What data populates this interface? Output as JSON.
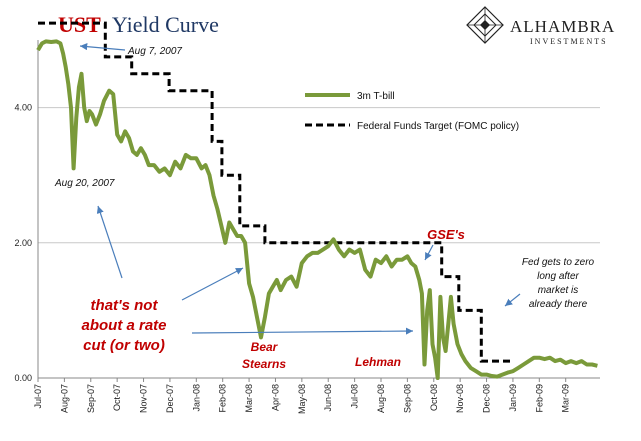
{
  "title": {
    "part1": "UST",
    "part2": "Yield Curve"
  },
  "brand": {
    "name": "ALHAMBRA",
    "subtitle": "INVESTMENTS"
  },
  "colors": {
    "title_red": "#c00000",
    "title_blue": "#1f3864",
    "tbill": "#7a9a3a",
    "fed_funds": "#000000",
    "arrow": "#4a7ebb",
    "annotation_red": "#c00000",
    "grid": "#c8c8c8"
  },
  "legend": [
    {
      "label": "3m T-bill",
      "style": "solid"
    },
    {
      "label": "Federal Funds Target (FOMC policy)",
      "style": "dashed"
    }
  ],
  "annotations": {
    "aug7": "Aug 7, 2007",
    "aug20": "Aug 20, 2007",
    "rate_cut_line1": "that's not",
    "rate_cut_line2": "about a rate",
    "rate_cut_line3": "cut (or two)",
    "bear_line1": "Bear",
    "bear_line2": "Stearns",
    "lehman": "Lehman",
    "gse": "GSE's",
    "zero_line1": "Fed gets to zero",
    "zero_line2": "long after",
    "zero_line3": "market is",
    "zero_line4": "already there"
  },
  "chart_data": {
    "type": "line",
    "x_unit": "months from Jul-07",
    "x_ticks": [
      "Jul-07",
      "Aug-07",
      "Sep-07",
      "Oct-07",
      "Nov-07",
      "Dec-07",
      "Jan-08",
      "Feb-08",
      "Mar-08",
      "Apr-08",
      "May-08",
      "Jun-08",
      "Jul-08",
      "Aug-08",
      "Sep-08",
      "Oct-08",
      "Nov-08",
      "Dec-08",
      "Jan-09",
      "Feb-09",
      "Mar-09"
    ],
    "xlim": [
      0,
      21.3
    ],
    "ylim": [
      0,
      5.0
    ],
    "y_ticks": [
      "0.00",
      "2.00",
      "4.00"
    ],
    "y_tick_values": [
      0,
      2,
      4
    ],
    "grid": true,
    "series": [
      {
        "name": "3m T-bill",
        "x": [
          0.0,
          0.15,
          0.3,
          0.5,
          0.7,
          0.85,
          0.95,
          1.05,
          1.15,
          1.25,
          1.35,
          1.45,
          1.55,
          1.65,
          1.75,
          1.85,
          1.95,
          2.05,
          2.2,
          2.35,
          2.5,
          2.7,
          2.85,
          3.0,
          3.15,
          3.3,
          3.45,
          3.6,
          3.75,
          3.9,
          4.05,
          4.2,
          4.4,
          4.6,
          4.8,
          5.0,
          5.2,
          5.4,
          5.6,
          5.8,
          6.0,
          6.2,
          6.35,
          6.5,
          6.65,
          6.8,
          6.95,
          7.1,
          7.25,
          7.4,
          7.55,
          7.7,
          7.85,
          8.0,
          8.15,
          8.3,
          8.45,
          8.6,
          8.75,
          8.9,
          9.05,
          9.2,
          9.4,
          9.6,
          9.8,
          10.0,
          10.2,
          10.4,
          10.6,
          10.8,
          11.0,
          11.2,
          11.4,
          11.6,
          11.8,
          12.0,
          12.2,
          12.4,
          12.6,
          12.8,
          13.0,
          13.2,
          13.4,
          13.6,
          13.8,
          14.0,
          14.15,
          14.3,
          14.45,
          14.55,
          14.65,
          14.75,
          14.85,
          14.95,
          15.05,
          15.15,
          15.25,
          15.35,
          15.45,
          15.55,
          15.65,
          15.75,
          15.9,
          16.05,
          16.2,
          16.4,
          16.6,
          16.8,
          17.0,
          17.2,
          17.4,
          17.6,
          17.8,
          18.0,
          18.2,
          18.4,
          18.6,
          18.8,
          19.0,
          19.2,
          19.4,
          19.6,
          19.8,
          20.0,
          20.2,
          20.4,
          20.6,
          20.8,
          21.0,
          21.2
        ],
        "values": [
          4.85,
          4.95,
          4.98,
          4.97,
          4.98,
          4.95,
          4.8,
          4.6,
          4.35,
          4.0,
          3.1,
          3.85,
          4.3,
          4.5,
          4.0,
          3.8,
          3.95,
          3.9,
          3.75,
          3.9,
          4.1,
          4.25,
          4.2,
          3.6,
          3.5,
          3.65,
          3.55,
          3.35,
          3.3,
          3.4,
          3.3,
          3.15,
          3.15,
          3.05,
          3.1,
          3.0,
          3.2,
          3.1,
          3.3,
          3.25,
          3.25,
          3.1,
          3.15,
          3.0,
          2.7,
          2.5,
          2.25,
          2.0,
          2.3,
          2.2,
          2.1,
          2.1,
          2.0,
          1.4,
          1.2,
          0.9,
          0.6,
          0.9,
          1.25,
          1.35,
          1.45,
          1.3,
          1.45,
          1.5,
          1.35,
          1.7,
          1.8,
          1.85,
          1.85,
          1.9,
          1.95,
          2.05,
          1.9,
          1.8,
          1.9,
          1.85,
          1.9,
          1.6,
          1.5,
          1.75,
          1.7,
          1.8,
          1.65,
          1.75,
          1.75,
          1.8,
          1.7,
          1.65,
          1.45,
          1.25,
          0.2,
          1.0,
          1.3,
          0.5,
          0.3,
          0.0,
          1.2,
          0.6,
          0.4,
          0.8,
          1.2,
          0.8,
          0.5,
          0.35,
          0.25,
          0.15,
          0.1,
          0.05,
          0.05,
          0.03,
          0.02,
          0.05,
          0.08,
          0.1,
          0.15,
          0.2,
          0.25,
          0.3,
          0.3,
          0.28,
          0.3,
          0.25,
          0.27,
          0.22,
          0.25,
          0.22,
          0.25,
          0.2,
          0.2,
          0.18
        ]
      },
      {
        "name": "Federal Funds Target (FOMC policy)",
        "x": [
          0.0,
          2.55,
          2.55,
          3.55,
          3.55,
          4.97,
          4.97,
          6.6,
          6.6,
          6.97,
          6.97,
          7.65,
          7.65,
          8.6,
          8.6,
          10.0,
          10.0,
          15.3,
          15.3,
          15.95,
          15.95,
          16.8,
          16.8,
          18.0
        ],
        "values": [
          5.25,
          5.25,
          4.75,
          4.75,
          4.5,
          4.5,
          4.25,
          4.25,
          3.5,
          3.5,
          3.0,
          3.0,
          2.25,
          2.25,
          2.0,
          2.0,
          2.0,
          2.0,
          1.5,
          1.5,
          1.0,
          1.0,
          0.25,
          0.25
        ]
      }
    ]
  }
}
